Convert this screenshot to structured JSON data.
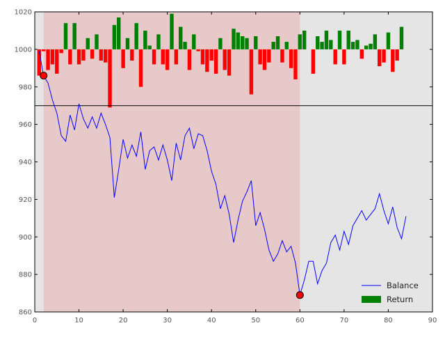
{
  "chart_data": {
    "type": "line",
    "xlim": [
      0,
      90
    ],
    "ylim": [
      860,
      1020
    ],
    "xticks": [
      0,
      10,
      20,
      30,
      40,
      50,
      60,
      70,
      80,
      90
    ],
    "yticks": [
      860,
      880,
      900,
      920,
      940,
      960,
      980,
      1000,
      1020
    ],
    "grid": false,
    "legend_position": "lower-right",
    "background_color": "#e5e5e5",
    "shaded_region": {
      "x": [
        2,
        60
      ],
      "color": "#e8c9c9"
    },
    "reference_line": {
      "y": 970,
      "color": "#000000"
    },
    "returns_baseline": 1000,
    "series": [
      {
        "name": "Balance",
        "color": "#0000ff",
        "kind": "line",
        "x": [
          1,
          2,
          3,
          4,
          5,
          6,
          7,
          8,
          9,
          10,
          11,
          12,
          13,
          14,
          15,
          16,
          17,
          18,
          19,
          20,
          21,
          22,
          23,
          24,
          25,
          26,
          27,
          28,
          29,
          30,
          31,
          32,
          33,
          34,
          35,
          36,
          37,
          38,
          39,
          40,
          41,
          42,
          43,
          44,
          45,
          46,
          47,
          48,
          49,
          50,
          51,
          52,
          53,
          54,
          55,
          56,
          57,
          58,
          59,
          60,
          61,
          62,
          63,
          64,
          65,
          66,
          67,
          68,
          69,
          70,
          71,
          72,
          73,
          74,
          75,
          76,
          77,
          78,
          79,
          80,
          81,
          82,
          83,
          84
        ],
        "y": [
          999,
          986,
          982,
          973,
          966,
          954,
          951,
          965,
          957,
          971,
          963,
          958,
          964,
          958,
          966,
          960,
          953,
          921,
          936,
          952,
          942,
          949,
          943,
          956,
          936,
          946,
          948,
          941,
          949,
          941,
          930,
          950,
          941,
          954,
          958,
          947,
          955,
          954,
          946,
          935,
          928,
          915,
          922,
          912,
          897,
          909,
          919,
          924,
          930,
          906,
          913,
          904,
          893,
          887,
          891,
          898,
          892,
          895,
          886,
          869,
          877,
          887,
          887,
          875,
          882,
          886,
          897,
          901,
          893,
          903,
          896,
          906,
          910,
          914,
          909,
          912,
          915,
          923,
          914,
          907,
          916,
          905,
          899,
          911
        ]
      },
      {
        "name": "Return",
        "color": "#008000",
        "negative_color": "#ff0000",
        "kind": "bar",
        "bar_width": 0.85,
        "x": [
          1,
          2,
          3,
          4,
          5,
          6,
          7,
          8,
          9,
          10,
          11,
          12,
          13,
          14,
          15,
          16,
          17,
          18,
          19,
          20,
          21,
          22,
          23,
          24,
          25,
          26,
          27,
          28,
          29,
          30,
          31,
          32,
          33,
          34,
          35,
          36,
          37,
          38,
          39,
          40,
          41,
          42,
          43,
          44,
          45,
          46,
          47,
          48,
          49,
          50,
          51,
          52,
          53,
          54,
          55,
          56,
          57,
          58,
          59,
          60,
          61,
          62,
          63,
          64,
          65,
          66,
          67,
          68,
          69,
          70,
          71,
          72,
          73,
          74,
          75,
          76,
          77,
          78,
          79,
          80,
          81,
          82,
          83,
          84
        ],
        "y": [
          -14,
          -1,
          -11,
          -8,
          -13,
          -2,
          14,
          -8,
          14,
          -8,
          -6,
          6,
          -5,
          8,
          -6,
          -7,
          -31,
          13,
          17,
          -10,
          6,
          -6,
          14,
          -20,
          10,
          2,
          -8,
          8,
          -8,
          -11,
          19,
          -8,
          12,
          4,
          -11,
          8,
          -1,
          -8,
          -12,
          -6,
          -13,
          6,
          -11,
          -14,
          11,
          9,
          7,
          6,
          -24,
          7,
          -8,
          -11,
          -7,
          4,
          7,
          -7,
          4,
          -10,
          -16,
          8,
          10,
          0,
          -13,
          7,
          4,
          10,
          5,
          -8,
          10,
          -8,
          10,
          4,
          5,
          -5,
          2,
          3,
          8,
          -9,
          -7,
          9,
          -12,
          -6,
          12,
          0
        ]
      }
    ],
    "markers": [
      {
        "x": 2,
        "y": 986,
        "color": "#ff0000"
      },
      {
        "x": 60,
        "y": 869,
        "color": "#ff0000"
      }
    ]
  }
}
